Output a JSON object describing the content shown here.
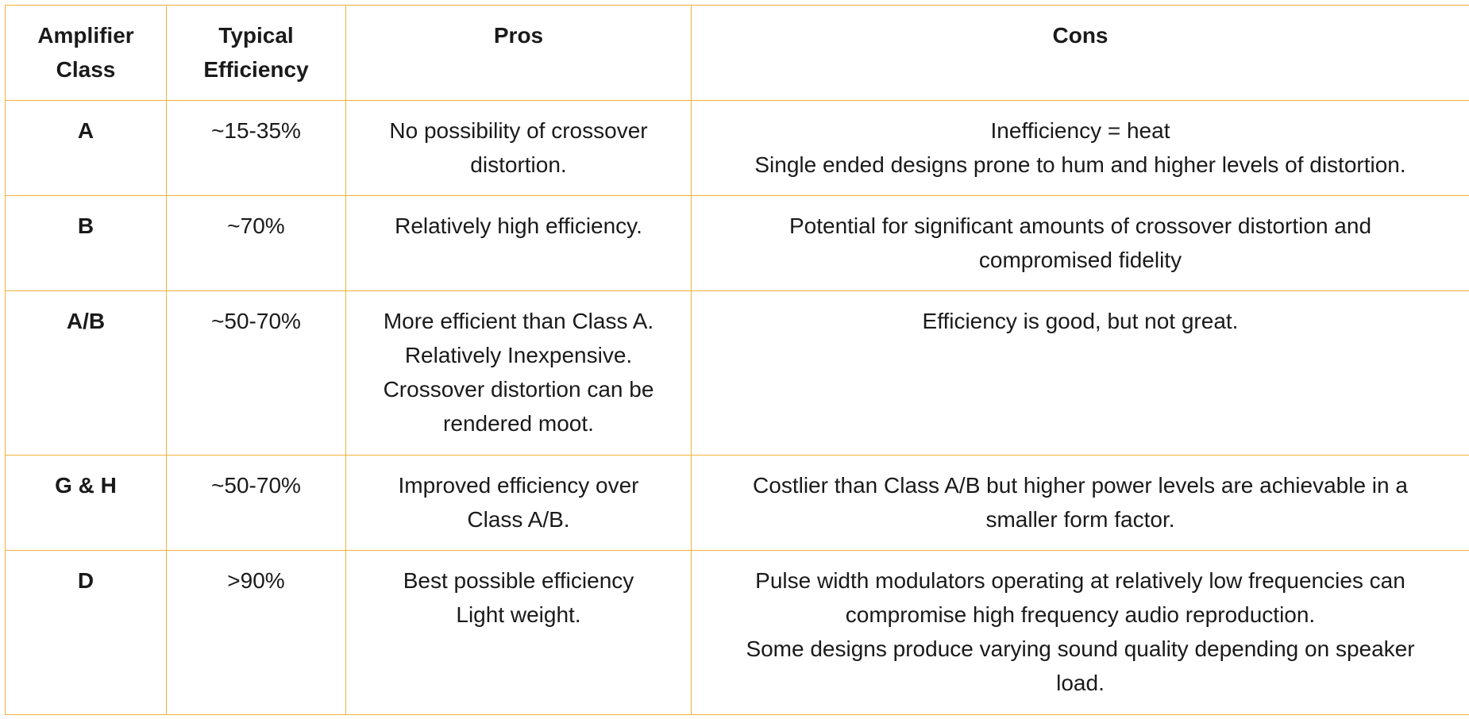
{
  "headers": {
    "class": [
      "Amplifier",
      "Class"
    ],
    "efficiency": [
      "Typical",
      "Efficiency"
    ],
    "pros": "Pros",
    "cons": "Cons"
  },
  "rows": [
    {
      "class": "A",
      "efficiency": "~15-35%",
      "pros": [
        "No possibility of crossover",
        "distortion."
      ],
      "cons": [
        "Inefficiency = heat",
        "Single ended designs prone to hum and higher levels of distortion."
      ]
    },
    {
      "class": "B",
      "efficiency": "~70%",
      "pros": [
        "Relatively high efficiency."
      ],
      "cons": [
        "Potential for significant amounts of crossover distortion and",
        "compromised fidelity"
      ]
    },
    {
      "class": "A/B",
      "efficiency": "~50-70%",
      "pros": [
        "More efficient than Class A.",
        "Relatively Inexpensive.",
        "Crossover distortion can be",
        "rendered moot."
      ],
      "cons": [
        "Efficiency is good, but not great."
      ]
    },
    {
      "class": "G & H",
      "efficiency": "~50-70%",
      "pros": [
        "Improved efficiency over",
        "Class A/B."
      ],
      "cons": [
        "Costlier than Class A/B but higher power levels are achievable in a",
        "smaller form factor."
      ]
    },
    {
      "class": "D",
      "efficiency": ">90%",
      "pros": [
        "Best possible efficiency",
        "Light weight."
      ],
      "cons": [
        "Pulse width modulators operating at relatively low frequencies can",
        "compromise high frequency audio reproduction.",
        "Some designs produce varying sound quality depending on speaker",
        "load."
      ]
    }
  ]
}
